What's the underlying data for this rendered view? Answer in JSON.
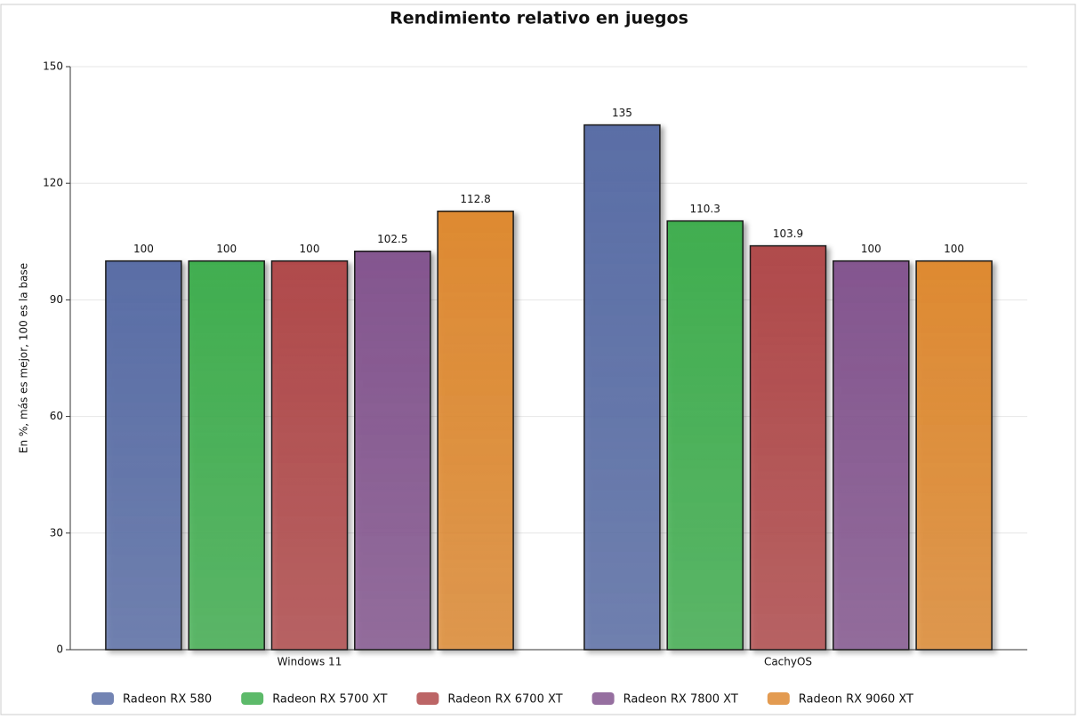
{
  "chart_data": {
    "type": "bar",
    "title": "Rendimiento relativo en juegos",
    "y_label": "En %, más es mejor, 100 es la base",
    "categories": [
      "Windows 11",
      "CachyOS"
    ],
    "series": [
      {
        "name": "Radeon RX 580",
        "color": "#5a6ea6",
        "values": [
          100,
          135
        ]
      },
      {
        "name": "Radeon RX 5700 XT",
        "color": "#41ae50",
        "values": [
          100,
          110.3
        ]
      },
      {
        "name": "Radeon RX 6700 XT",
        "color": "#b04a4b",
        "values": [
          100,
          103.9
        ]
      },
      {
        "name": "Radeon RX 7800 XT",
        "color": "#84568f",
        "values": [
          102.5,
          100
        ]
      },
      {
        "name": "Radeon RX 9060 XT",
        "color": "#de8a32",
        "values": [
          112.8,
          100
        ]
      }
    ],
    "ylim": [
      0,
      150
    ],
    "yticks": [
      0,
      30,
      60,
      90,
      120,
      150
    ],
    "grid": true,
    "legend": "bottom"
  }
}
